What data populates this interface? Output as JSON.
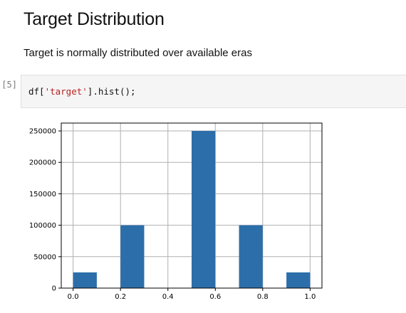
{
  "notebook": {
    "heading": "Target Distribution",
    "description": "Target is normally distributed over available eras",
    "cell": {
      "prompt": "[5]:",
      "code_prefix": "df[",
      "code_string": "'target'",
      "code_suffix": "].hist();"
    }
  },
  "chart_data": {
    "type": "bar",
    "title": "",
    "xlabel": "",
    "ylabel": "",
    "bins": [
      {
        "left": 0.0,
        "right": 0.1,
        "count": 25000
      },
      {
        "left": 0.2,
        "right": 0.3,
        "count": 100000
      },
      {
        "left": 0.5,
        "right": 0.6,
        "count": 250000
      },
      {
        "left": 0.7,
        "right": 0.8,
        "count": 100000
      },
      {
        "left": 0.9,
        "right": 1.0,
        "count": 25000
      }
    ],
    "xlim": [
      -0.05,
      1.05
    ],
    "ylim": [
      0,
      262500
    ],
    "xticks": [
      "0.0",
      "0.2",
      "0.4",
      "0.6",
      "0.8",
      "1.0"
    ],
    "yticks": [
      "0",
      "50000",
      "100000",
      "150000",
      "200000",
      "250000"
    ],
    "grid": true,
    "bar_color": "#2c6eaa"
  }
}
